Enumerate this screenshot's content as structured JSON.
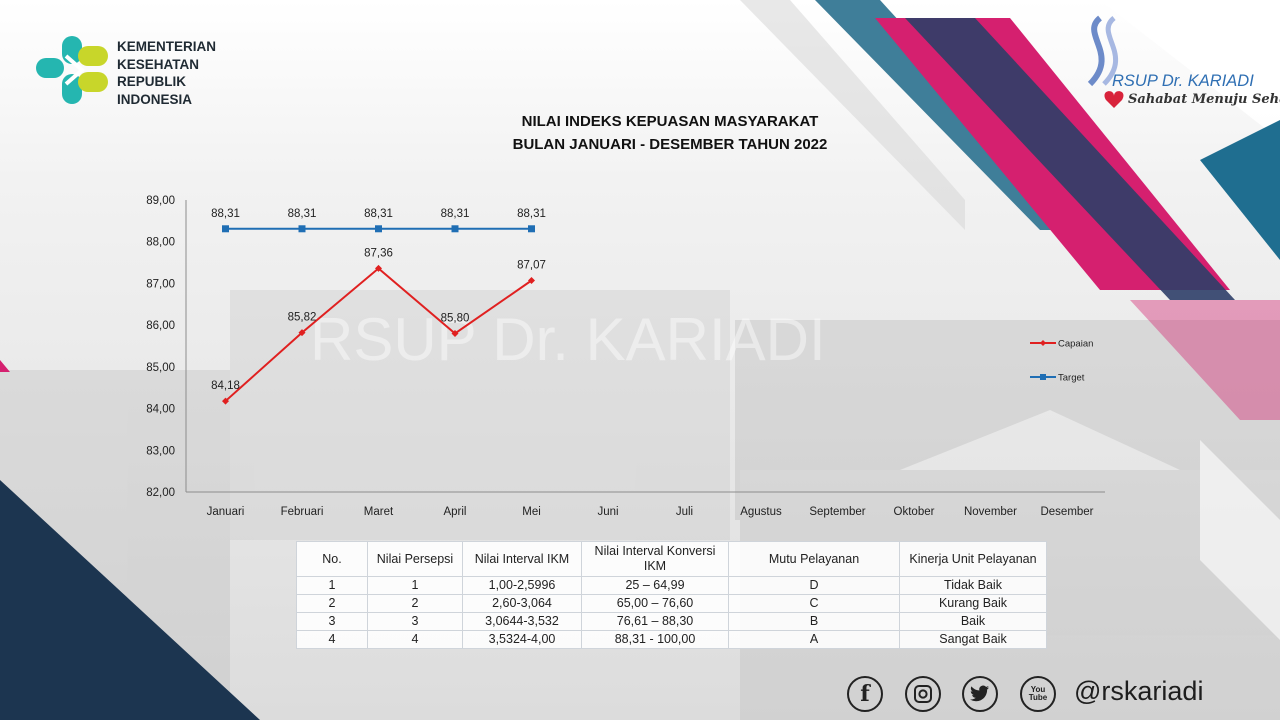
{
  "header": {
    "ministry_logo_text": "KEMENTERIAN\nKESEHATAN\nREPUBLIK\nINDONESIA",
    "hospital_name": "RSUP Dr. KARIADI",
    "hospital_tagline": "Sahabat Menuju Sehat",
    "watermark_text": "RSUP Dr. KARIADI"
  },
  "colors": {
    "capaian": "#e02020",
    "target": "#1f6eb4",
    "magenta": "#d5206f",
    "navy": "#1c3550",
    "teal": "#2b6a8c",
    "grid": "#bfbfbf"
  },
  "chart_data": {
    "type": "line",
    "title": "NILAI INDEKS KEPUASAN MASYARAKAT",
    "subtitle": "BULAN JANUARI - DESEMBER TAHUN 2022",
    "categories": [
      "Januari",
      "Februari",
      "Maret",
      "April",
      "Mei",
      "Juni",
      "Juli",
      "Agustus",
      "September",
      "Oktober",
      "November",
      "Desember"
    ],
    "series": [
      {
        "name": "Capaian",
        "values": [
          84.18,
          85.82,
          87.36,
          85.8,
          87.07,
          null,
          null,
          null,
          null,
          null,
          null,
          null
        ],
        "labels": [
          "84,18",
          "85,82",
          "87,36",
          "85,80",
          "87,07"
        ]
      },
      {
        "name": "Target",
        "values": [
          88.31,
          88.31,
          88.31,
          88.31,
          88.31,
          null,
          null,
          null,
          null,
          null,
          null,
          null
        ],
        "labels": [
          "88,31",
          "88,31",
          "88,31",
          "88,31",
          "88,31"
        ]
      }
    ],
    "yticks": [
      "82,00",
      "83,00",
      "84,00",
      "85,00",
      "86,00",
      "87,00",
      "88,00",
      "89,00"
    ],
    "ylim": [
      82,
      89
    ],
    "grid": false,
    "legend": "right"
  },
  "table": {
    "headers": [
      "No.",
      "Nilai Persepsi",
      "Nilai Interval IKM",
      "Nilai Interval Konversi IKM",
      "Mutu Pelayanan",
      "Kinerja Unit Pelayanan"
    ],
    "rows": [
      [
        "1",
        "1",
        "1,00-2,5996",
        "25 – 64,99",
        "D",
        "Tidak Baik"
      ],
      [
        "2",
        "2",
        "2,60-3,064",
        "65,00 – 76,60",
        "C",
        "Kurang Baik"
      ],
      [
        "3",
        "3",
        "3,0644-3,532",
        "76,61 – 88,30",
        "B",
        "Baik"
      ],
      [
        "4",
        "4",
        "3,5324-4,00",
        "88,31 - 100,00",
        "A",
        "Sangat Baik"
      ]
    ]
  },
  "footer": {
    "social_icons": [
      "facebook-icon",
      "instagram-icon",
      "twitter-icon",
      "youtube-icon"
    ],
    "facebook_glyph": "f",
    "twitter_glyph": "t",
    "youtube_glyph": "You\nTube",
    "handle": "@rskariadi"
  }
}
